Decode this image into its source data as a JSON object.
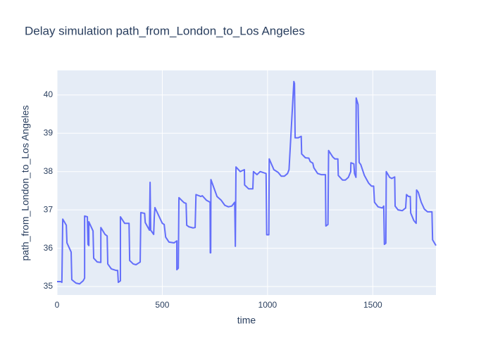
{
  "chart_data": {
    "type": "line",
    "title": "Delay simulation path_from_London_to_Los Angeles",
    "x_label": "time",
    "y_label": "path_from_London_to_Los Angeles",
    "color": "#636efa",
    "grid": true,
    "xlim": [
      0,
      1800
    ],
    "ylim": [
      34.78,
      40.64
    ],
    "xticks": [
      0,
      500,
      1000,
      1500
    ],
    "yticks": [
      35,
      36,
      37,
      38,
      39,
      40
    ],
    "x": [
      0,
      17,
      23,
      27,
      44,
      47,
      67,
      70,
      90,
      107,
      124,
      131,
      131,
      144,
      147,
      151,
      151,
      171,
      174,
      191,
      208,
      208,
      228,
      238,
      241,
      258,
      281,
      288,
      291,
      301,
      301,
      321,
      342,
      345,
      362,
      375,
      395,
      398,
      416,
      419,
      439,
      442,
      445,
      459,
      462,
      465,
      500,
      509,
      516,
      532,
      556,
      569,
      569,
      576,
      579,
      603,
      613,
      616,
      626,
      646,
      656,
      660,
      683,
      690,
      710,
      727,
      728,
      730,
      731,
      760,
      780,
      797,
      814,
      830,
      844,
      847,
      850,
      870,
      890,
      891,
      910,
      930,
      933,
      950,
      965,
      993,
      996,
      1006,
      1008,
      1030,
      1050,
      1065,
      1080,
      1095,
      1102,
      1125,
      1128,
      1131,
      1145,
      1160,
      1162,
      1180,
      1196,
      1203,
      1215,
      1220,
      1238,
      1255,
      1275,
      1277,
      1287,
      1290,
      1310,
      1320,
      1334,
      1336,
      1356,
      1370,
      1384,
      1395,
      1396,
      1410,
      1413,
      1420,
      1421,
      1430,
      1435,
      1443,
      1460,
      1480,
      1494,
      1504,
      1508,
      1525,
      1545,
      1552,
      1555,
      1562,
      1564,
      1580,
      1590,
      1604,
      1606,
      1620,
      1640,
      1656,
      1660,
      1670,
      1678,
      1680,
      1695,
      1706,
      1708,
      1716,
      1730,
      1745,
      1760,
      1781,
      1784,
      1800
    ],
    "values": [
      35.13,
      35.13,
      35.11,
      36.76,
      36.6,
      36.14,
      35.9,
      35.18,
      35.09,
      35.07,
      35.15,
      35.22,
      36.84,
      36.82,
      36.1,
      36.07,
      36.69,
      36.45,
      35.74,
      35.64,
      35.63,
      36.54,
      36.36,
      36.32,
      35.59,
      35.46,
      35.42,
      35.42,
      35.11,
      35.15,
      36.82,
      36.65,
      36.65,
      35.68,
      35.59,
      35.57,
      35.64,
      36.93,
      36.91,
      36.67,
      36.47,
      37.72,
      36.47,
      36.36,
      36.82,
      37.06,
      36.65,
      36.62,
      36.29,
      36.16,
      36.14,
      36.19,
      35.44,
      35.48,
      37.32,
      37.19,
      37.17,
      36.6,
      36.56,
      36.53,
      36.54,
      37.4,
      37.35,
      37.37,
      37.25,
      37.2,
      35.88,
      35.88,
      37.79,
      37.35,
      37.25,
      37.12,
      37.08,
      37.1,
      37.2,
      36.05,
      38.12,
      38.0,
      38.05,
      37.65,
      37.55,
      37.55,
      38.0,
      37.92,
      38.0,
      37.95,
      36.35,
      36.35,
      38.33,
      38.05,
      37.98,
      37.88,
      37.88,
      37.95,
      38.05,
      40.35,
      40.3,
      38.88,
      38.88,
      38.92,
      38.46,
      38.36,
      38.35,
      38.26,
      38.22,
      38.1,
      37.95,
      37.92,
      37.92,
      36.58,
      36.62,
      38.55,
      38.38,
      38.33,
      38.33,
      37.9,
      37.78,
      37.78,
      37.85,
      38.0,
      38.23,
      38.2,
      37.95,
      37.85,
      39.92,
      39.75,
      38.24,
      38.18,
      37.9,
      37.7,
      37.62,
      37.62,
      37.2,
      37.08,
      37.05,
      37.1,
      36.1,
      36.13,
      38.0,
      37.85,
      37.82,
      37.86,
      37.1,
      37.0,
      36.98,
      37.05,
      37.4,
      37.35,
      37.35,
      36.92,
      36.72,
      36.65,
      37.52,
      37.46,
      37.2,
      37.02,
      36.95,
      36.95,
      36.22,
      36.07
    ]
  }
}
